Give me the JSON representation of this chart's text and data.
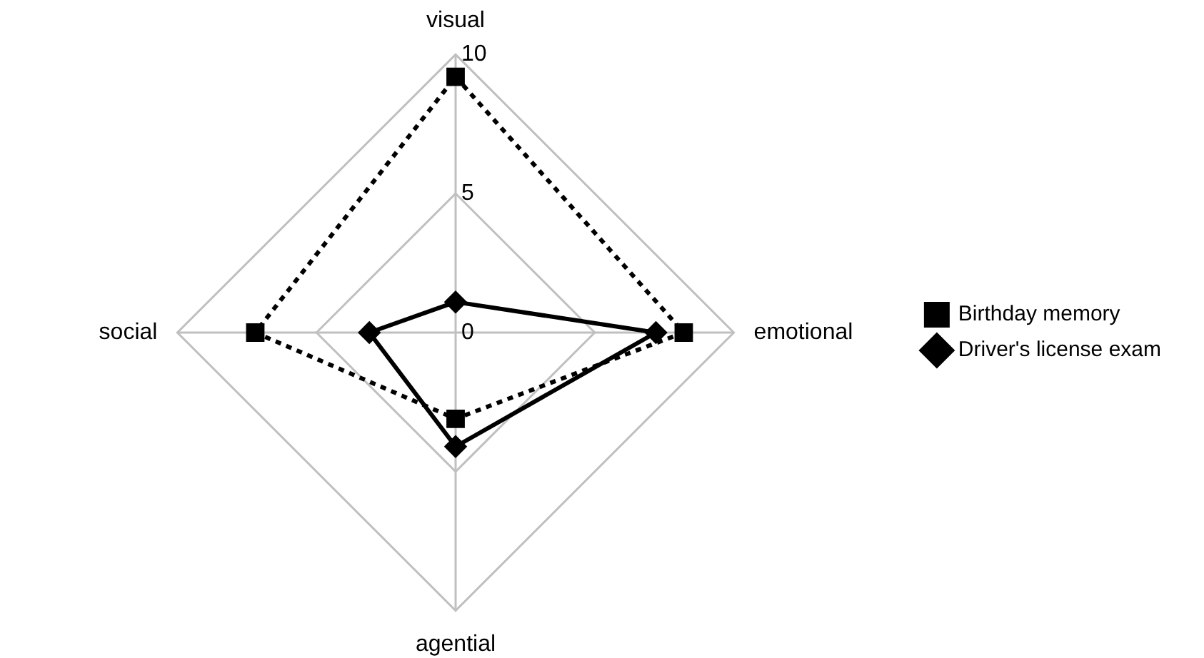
{
  "chart_data": {
    "type": "radar",
    "categories": [
      "visual",
      "emotional",
      "agential",
      "social"
    ],
    "series": [
      {
        "name": "Birthday memory",
        "color": "#000000",
        "values": [
          9.2,
          8.2,
          3.1,
          7.2
        ],
        "marker": "square",
        "line_style": "dotted"
      },
      {
        "name": "Driver's license exam",
        "color": "#000000",
        "values": [
          1.1,
          7.2,
          4.1,
          3.1
        ],
        "marker": "diamond",
        "line_style": "solid"
      }
    ],
    "ylim": [
      0,
      10
    ],
    "yticks": [
      0,
      5,
      10
    ],
    "grid": true,
    "legend": "right"
  }
}
